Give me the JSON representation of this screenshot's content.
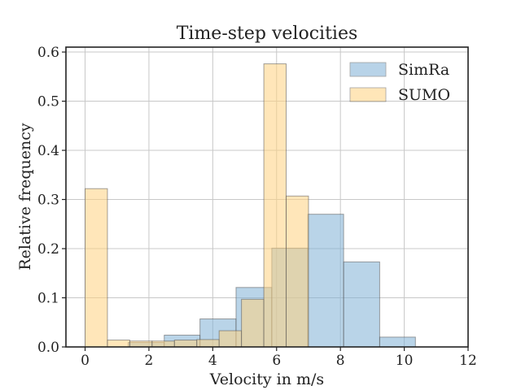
{
  "chart_data": {
    "type": "histogram",
    "title": "Time-step velocities",
    "xlabel": "Velocity in m/s",
    "ylabel": "Relative frequency",
    "xlim": [
      -0.6,
      12
    ],
    "ylim": [
      0,
      0.61
    ],
    "xticks": [
      0,
      2,
      4,
      6,
      8,
      10,
      12
    ],
    "yticks": [
      0.0,
      0.1,
      0.2,
      0.3,
      0.4,
      0.5,
      0.6
    ],
    "xtick_labels": [
      "0",
      "2",
      "4",
      "6",
      "8",
      "10",
      "12"
    ],
    "ytick_labels": [
      "0.0",
      "0.1",
      "0.2",
      "0.3",
      "0.4",
      "0.5",
      "0.6"
    ],
    "grid": true,
    "legend_position": "top-right",
    "series": [
      {
        "name": "SimRa",
        "color": "#7fb0d6",
        "bin_edges": [
          1.35,
          2.48,
          3.6,
          4.73,
          5.85,
          6.98,
          8.1,
          9.23,
          10.35
        ],
        "values": [
          0.009,
          0.024,
          0.057,
          0.121,
          0.201,
          0.27,
          0.173,
          0.02
        ]
      },
      {
        "name": "SUMO",
        "color": "#ffd27f",
        "bin_edges": [
          0.0,
          0.7,
          1.4,
          2.1,
          2.8,
          3.5,
          4.2,
          4.9,
          5.6,
          6.3,
          7.0
        ],
        "values": [
          0.322,
          0.014,
          0.012,
          0.012,
          0.014,
          0.015,
          0.033,
          0.097,
          0.576,
          0.307
        ]
      }
    ]
  }
}
